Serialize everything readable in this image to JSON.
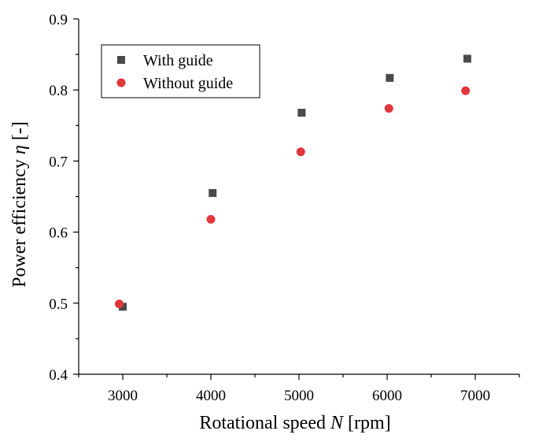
{
  "chart_data": {
    "type": "scatter",
    "xlabel_main": "Rotational speed ",
    "xlabel_symbol": "N",
    "xlabel_unit": " [rpm]",
    "ylabel_main": "Power efficiency ",
    "ylabel_symbol": "η",
    "ylabel_unit": "  [-]",
    "xlim": [
      2500,
      7500
    ],
    "ylim": [
      0.4,
      0.9
    ],
    "x_ticks": [
      3000,
      4000,
      5000,
      6000,
      7000
    ],
    "x_tick_labels": [
      "3000",
      "4000",
      "5000",
      "6000",
      "7000"
    ],
    "y_ticks": [
      0.4,
      0.5,
      0.6,
      0.7,
      0.8,
      0.9
    ],
    "y_tick_labels": [
      "0.4",
      "0.5",
      "0.6",
      "0.7",
      "0.8",
      "0.9"
    ],
    "legend_position": "top-left",
    "grid": false,
    "series": [
      {
        "name": "With guide",
        "marker": "square",
        "color": "#4a4a4a",
        "x": [
          3000,
          4020,
          5030,
          6030,
          6910
        ],
        "y": [
          0.495,
          0.655,
          0.768,
          0.817,
          0.844
        ]
      },
      {
        "name": "Without guide",
        "marker": "circle",
        "color": "#e0373c",
        "x": [
          2960,
          4000,
          5020,
          6020,
          6890
        ],
        "y": [
          0.499,
          0.618,
          0.713,
          0.774,
          0.799
        ]
      }
    ]
  }
}
